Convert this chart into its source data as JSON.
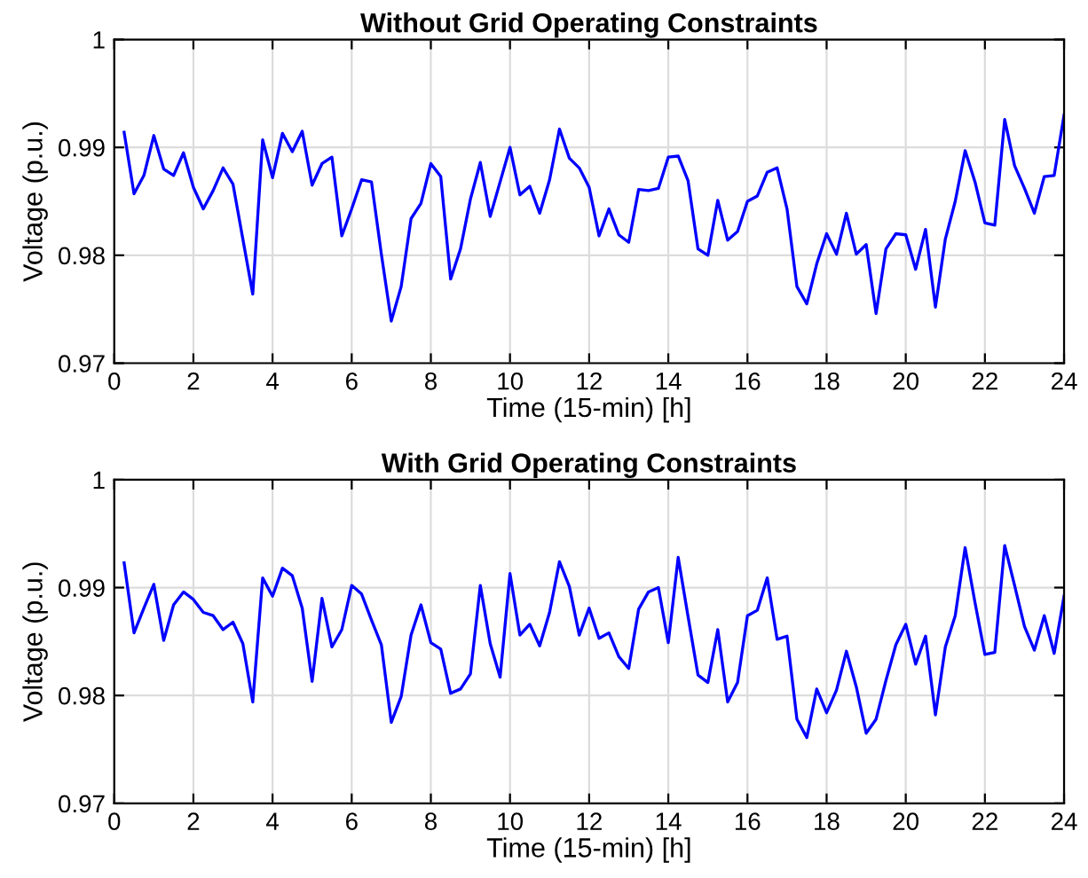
{
  "chart_data": [
    {
      "type": "line",
      "title": "Without Grid Operating Constraints",
      "xlabel": "Time (15-min) [h]",
      "ylabel": "Voltage (p.u.)",
      "xlim": [
        0,
        24
      ],
      "xticks": [
        0,
        2,
        4,
        6,
        8,
        10,
        12,
        14,
        16,
        18,
        20,
        22,
        24
      ],
      "ylim": [
        0.97,
        1
      ],
      "yticks": [
        0.97,
        0.98,
        0.99,
        1
      ],
      "grid": true,
      "marker": "none",
      "line_style": "solid",
      "x": [
        0.25,
        0.5,
        0.75,
        1,
        1.25,
        1.5,
        1.75,
        2,
        2.25,
        2.5,
        2.75,
        3,
        3.25,
        3.5,
        3.75,
        4,
        4.25,
        4.5,
        4.75,
        5,
        5.25,
        5.5,
        5.75,
        6,
        6.25,
        6.5,
        6.75,
        7,
        7.25,
        7.5,
        7.75,
        8,
        8.25,
        8.5,
        8.75,
        9,
        9.25,
        9.5,
        9.75,
        10,
        10.25,
        10.5,
        10.75,
        11,
        11.25,
        11.5,
        11.75,
        12,
        12.25,
        12.5,
        12.75,
        13,
        13.25,
        13.5,
        13.75,
        14,
        14.25,
        14.5,
        14.75,
        15,
        15.25,
        15.5,
        15.75,
        16,
        16.25,
        16.5,
        16.75,
        17,
        17.25,
        17.5,
        17.75,
        18,
        18.25,
        18.5,
        18.75,
        19,
        19.25,
        19.5,
        19.75,
        20,
        20.25,
        20.5,
        20.75,
        21,
        21.25,
        21.5,
        21.75,
        22,
        22.25,
        22.5,
        22.75,
        23,
        23.25,
        23.5,
        23.75,
        24
      ],
      "series": [
        {
          "color": "#0000ff",
          "values": [
            0.9914,
            0.9857,
            0.9874,
            0.9911,
            0.988,
            0.9874,
            0.9895,
            0.9863,
            0.9843,
            0.986,
            0.9881,
            0.9866,
            0.9815,
            0.9764,
            0.9907,
            0.9872,
            0.9913,
            0.9896,
            0.9915,
            0.9865,
            0.9885,
            0.9891,
            0.9818,
            0.9843,
            0.987,
            0.9868,
            0.9801,
            0.9739,
            0.9771,
            0.9834,
            0.9848,
            0.9885,
            0.9873,
            0.9778,
            0.9806,
            0.9852,
            0.9886,
            0.9836,
            0.9868,
            0.99,
            0.9856,
            0.9864,
            0.9839,
            0.987,
            0.9917,
            0.989,
            0.9881,
            0.9863,
            0.9818,
            0.9843,
            0.9819,
            0.9812,
            0.9861,
            0.986,
            0.9862,
            0.9891,
            0.9892,
            0.9869,
            0.9806,
            0.98,
            0.9851,
            0.9814,
            0.9822,
            0.985,
            0.9855,
            0.9877,
            0.9881,
            0.9843,
            0.9771,
            0.9755,
            0.9792,
            0.982,
            0.9801,
            0.9839,
            0.9801,
            0.981,
            0.9746,
            0.9806,
            0.982,
            0.9819,
            0.9787,
            0.9824,
            0.9752,
            0.9815,
            0.985,
            0.9897,
            0.9868,
            0.983,
            0.9828,
            0.9926,
            0.9883,
            0.9862,
            0.9839,
            0.9873,
            0.9874,
            0.993
          ]
        }
      ]
    },
    {
      "type": "line",
      "title": "With Grid Operating Constraints",
      "xlabel": "Time (15-min) [h]",
      "ylabel": "Voltage (p.u.)",
      "xlim": [
        0,
        24
      ],
      "xticks": [
        0,
        2,
        4,
        6,
        8,
        10,
        12,
        14,
        16,
        18,
        20,
        22,
        24
      ],
      "ylim": [
        0.97,
        1
      ],
      "yticks": [
        0.97,
        0.98,
        0.99,
        1
      ],
      "grid": true,
      "marker": "none",
      "line_style": "solid",
      "x": [
        0.25,
        0.5,
        0.75,
        1,
        1.25,
        1.5,
        1.75,
        2,
        2.25,
        2.5,
        2.75,
        3,
        3.25,
        3.5,
        3.75,
        4,
        4.25,
        4.5,
        4.75,
        5,
        5.25,
        5.5,
        5.75,
        6,
        6.25,
        6.5,
        6.75,
        7,
        7.25,
        7.5,
        7.75,
        8,
        8.25,
        8.5,
        8.75,
        9,
        9.25,
        9.5,
        9.75,
        10,
        10.25,
        10.5,
        10.75,
        11,
        11.25,
        11.5,
        11.75,
        12,
        12.25,
        12.5,
        12.75,
        13,
        13.25,
        13.5,
        13.75,
        14,
        14.25,
        14.5,
        14.75,
        15,
        15.25,
        15.5,
        15.75,
        16,
        16.25,
        16.5,
        16.75,
        17,
        17.25,
        17.5,
        17.75,
        18,
        18.25,
        18.5,
        18.75,
        19,
        19.25,
        19.5,
        19.75,
        20,
        20.25,
        20.5,
        20.75,
        21,
        21.25,
        21.5,
        21.75,
        22,
        22.25,
        22.5,
        22.75,
        23,
        23.25,
        23.5,
        23.75,
        24
      ],
      "series": [
        {
          "color": "#0000ff",
          "values": [
            0.9923,
            0.9858,
            0.9881,
            0.9903,
            0.9851,
            0.9884,
            0.9896,
            0.9889,
            0.9877,
            0.9874,
            0.9861,
            0.9868,
            0.9848,
            0.9794,
            0.9909,
            0.9892,
            0.9918,
            0.9911,
            0.9881,
            0.9813,
            0.989,
            0.9845,
            0.9861,
            0.9902,
            0.9894,
            0.987,
            0.9847,
            0.9775,
            0.9799,
            0.9856,
            0.9884,
            0.9849,
            0.9843,
            0.9802,
            0.9806,
            0.982,
            0.9902,
            0.9848,
            0.9817,
            0.9913,
            0.9856,
            0.9866,
            0.9846,
            0.9877,
            0.9924,
            0.9901,
            0.9856,
            0.9881,
            0.9853,
            0.9858,
            0.9836,
            0.9825,
            0.988,
            0.9896,
            0.99,
            0.9849,
            0.9928,
            0.9873,
            0.9819,
            0.9812,
            0.9861,
            0.9794,
            0.9812,
            0.9874,
            0.9879,
            0.9909,
            0.9852,
            0.9855,
            0.9778,
            0.9761,
            0.9806,
            0.9784,
            0.9805,
            0.9841,
            0.9808,
            0.9765,
            0.9778,
            0.9814,
            0.9847,
            0.9866,
            0.9829,
            0.9855,
            0.9782,
            0.9845,
            0.9874,
            0.9937,
            0.9886,
            0.9838,
            0.984,
            0.9939,
            0.9902,
            0.9864,
            0.9842,
            0.9874,
            0.9839,
            0.9892
          ]
        }
      ]
    }
  ]
}
